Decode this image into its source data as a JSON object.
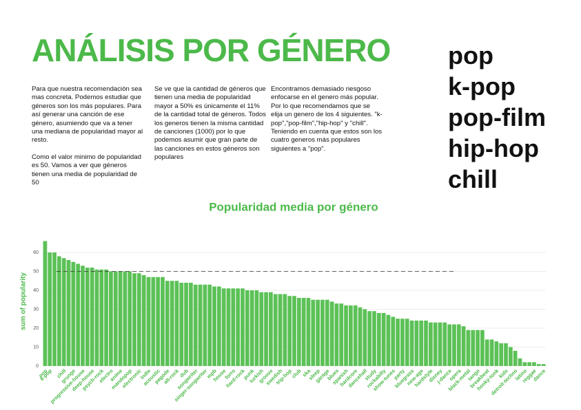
{
  "header": {
    "title": "ANÁLISIS POR GÉNERO"
  },
  "columns": [
    [
      "Para que nuestra recomendación sea mas concreta. Podemos estudiar que géneros son los más populares. Para así generar una canción de ese género, asumiendo que va a tener una mediana de popularidad mayor al resto.",
      "Como el valor minimo de popularidad es 50. Vamos a ver que géneros tienen una media de popularidad de 50"
    ],
    [
      "Se ve que la cantidad de géneros que tienen una media de popularidad mayor a 50% es únicamente el 11% de la cantidad total de géneros. Todos los generos tienen la misma cantidad de canciones (1000) por lo que podemos asumir que gran parte de las canciones en estos géneros son populares"
    ],
    [
      "Encontramos demasiado riesgoso enfocarse en el genero más popular. Por lo que recomendamos que se elija un genero de los 4 siguientes. \"k-pop\",\"pop-film\",\"hip-hop\" y \"chill\". Teniendo en cuenta que estos son los cuatro generos más populares siguientes a \"pop\"."
    ]
  ],
  "top_genres": [
    "pop",
    "k-pop",
    "pop-film",
    "hip-hop",
    "chill"
  ],
  "chart_data": {
    "type": "bar",
    "title": "Popularidad media por género",
    "y_label": "sum of popularity",
    "color": "#5cc157",
    "grid": true,
    "reference_value": 50,
    "ylim": [
      0,
      68
    ],
    "yticks": [
      0,
      10,
      20,
      30,
      40,
      50,
      60
    ],
    "categories": [
      "pop",
      "k-pop",
      null,
      null,
      "chill",
      null,
      "grunge",
      null,
      "progressive-house",
      null,
      "deep-house",
      null,
      "psych-rock",
      null,
      "electro",
      null,
      "anime",
      null,
      "mandopop",
      null,
      "electronic",
      null,
      "indie",
      null,
      "acoustic",
      null,
      "pagode",
      null,
      "alt-rock",
      null,
      "dub",
      null,
      "songwriter",
      null,
      "singer-songwriter",
      null,
      "mpb",
      null,
      "house",
      null,
      "forro",
      null,
      "hard-rock",
      null,
      "punk",
      null,
      "turkish",
      null,
      "groove",
      null,
      "swedish",
      null,
      "trip-hop",
      null,
      "club",
      null,
      "ska",
      null,
      "sleep",
      null,
      "garage",
      null,
      "blues",
      null,
      "spanish",
      null,
      "hardcore",
      null,
      "dancehall",
      null,
      "study",
      null,
      "rockabilly",
      null,
      "show-tunes",
      null,
      "party",
      null,
      "bluegrass",
      null,
      "new-age",
      null,
      "hardstyle",
      null,
      "disney",
      null,
      "j-dance",
      null,
      "opera",
      null,
      "black-metal",
      null,
      "tango",
      null,
      "breakbeat",
      null,
      "honky-tonk",
      null,
      "kids",
      null,
      "detroit-techno",
      null,
      "latino",
      null,
      "reggae",
      null,
      "dance"
    ],
    "values": [
      66,
      60,
      60,
      58,
      57,
      56,
      55,
      54,
      53,
      52,
      52,
      51,
      51,
      51,
      50,
      50,
      50,
      50,
      50,
      49,
      49,
      48,
      47,
      47,
      47,
      47,
      45,
      45,
      45,
      44,
      44,
      44,
      43,
      43,
      43,
      43,
      42,
      42,
      41,
      41,
      41,
      41,
      41,
      40,
      40,
      40,
      39,
      39,
      39,
      38,
      38,
      38,
      37,
      37,
      36,
      36,
      36,
      35,
      35,
      35,
      35,
      34,
      33,
      33,
      32,
      32,
      32,
      31,
      30,
      29,
      29,
      28,
      28,
      27,
      26,
      25,
      25,
      25,
      24,
      24,
      24,
      24,
      23,
      23,
      23,
      23,
      22,
      22,
      22,
      21,
      19,
      19,
      19,
      19,
      14,
      14,
      13,
      12,
      12,
      10,
      8,
      4,
      2,
      2,
      2,
      1,
      1
    ]
  }
}
